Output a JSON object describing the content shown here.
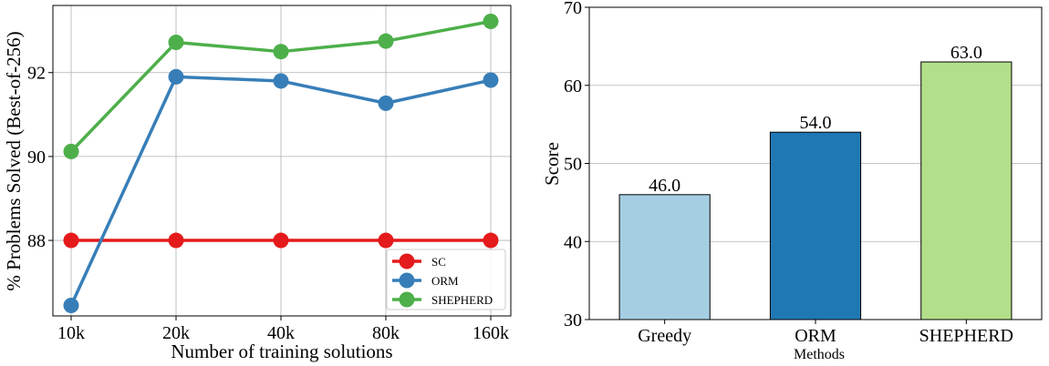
{
  "chart_data": [
    {
      "type": "line",
      "xlabel": "Number of training solutions",
      "ylabel": "% Problems Solved (Best-of-256)",
      "categories": [
        "10k",
        "20k",
        "40k",
        "80k",
        "160k"
      ],
      "ylim": [
        86.2,
        93.6
      ],
      "yticks": [
        88,
        90,
        92
      ],
      "grid": true,
      "legend_position": "lower-right",
      "series": [
        {
          "name": "SC",
          "color": "#e41a1c",
          "values": [
            88.0,
            88.0,
            88.0,
            88.0,
            88.0
          ]
        },
        {
          "name": "ORM",
          "color": "#377eb8",
          "values": [
            86.45,
            91.9,
            91.8,
            91.27,
            91.82
          ]
        },
        {
          "name": "SHEPHERD",
          "color": "#4daf4a",
          "values": [
            90.12,
            92.72,
            92.5,
            92.75,
            93.22
          ]
        }
      ]
    },
    {
      "type": "bar",
      "xlabel": "Methods",
      "ylabel": "Score",
      "categories": [
        "Greedy",
        "ORM",
        "SHEPHERD"
      ],
      "values": [
        46.0,
        54.0,
        63.0
      ],
      "data_labels": [
        "46.0",
        "54.0",
        "63.0"
      ],
      "colors": [
        "#a6cee3",
        "#1f78b4",
        "#b2df8a"
      ],
      "ylim": [
        30,
        70
      ],
      "yticks": [
        30,
        40,
        50,
        60,
        70
      ],
      "grid": true
    }
  ]
}
